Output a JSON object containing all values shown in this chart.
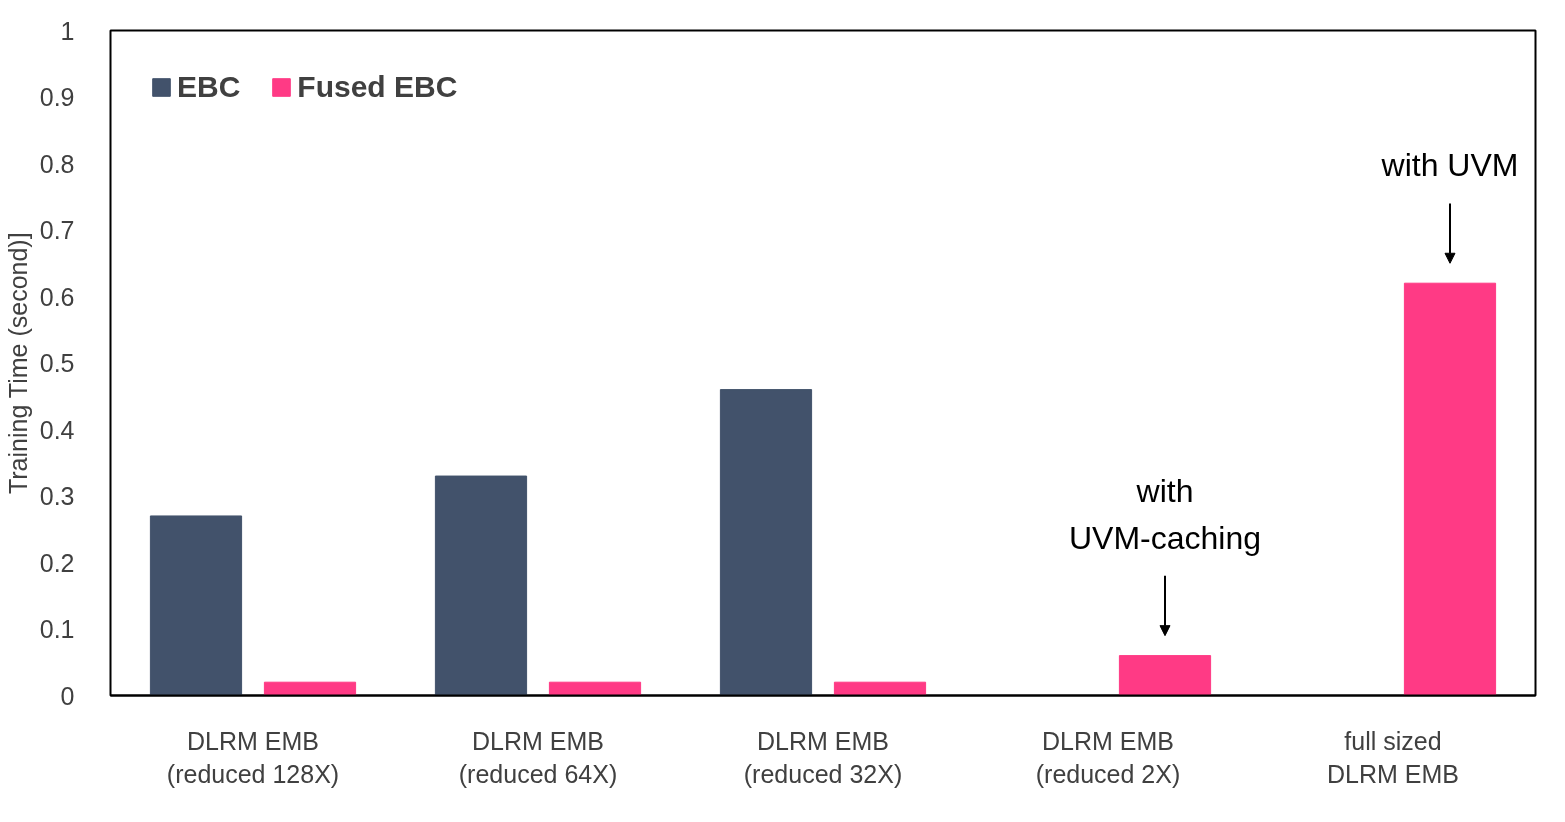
{
  "chart_data": {
    "type": "bar",
    "ylabel": "Training Time (second)]",
    "categories": [
      "DLRM EMB\n(reduced 128X)",
      "DLRM EMB\n(reduced 64X)",
      "DLRM EMB\n(reduced 32X)",
      "DLRM EMB\n(reduced 2X)",
      "full sized\nDLRM EMB"
    ],
    "series": [
      {
        "name": "EBC",
        "color": "#42526b",
        "values": [
          0.27,
          0.33,
          0.46,
          null,
          null
        ]
      },
      {
        "name": "Fused EBC",
        "color": "#ff3a85",
        "values": [
          0.02,
          0.02,
          0.02,
          0.06,
          0.62
        ]
      }
    ],
    "ylim": [
      0,
      1
    ],
    "yticks": [
      0,
      0.1,
      0.2,
      0.3,
      0.4,
      0.5,
      0.6,
      0.7,
      0.8,
      0.9,
      1
    ],
    "grid": false,
    "legend": "top left",
    "annotations": [
      "with\nUVM-caching",
      "with UVM"
    ]
  }
}
